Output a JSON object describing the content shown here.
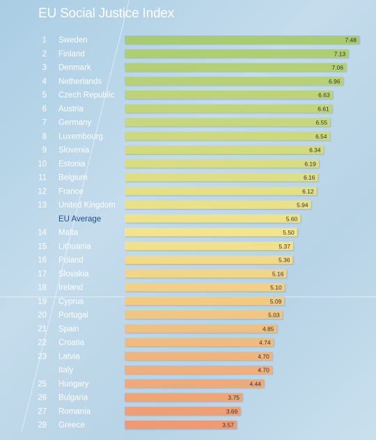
{
  "chart_data": {
    "type": "bar",
    "orientation": "horizontal",
    "title": "EU Social Justice Index",
    "xlabel": "",
    "ylabel": "",
    "grid": false,
    "xlim": [
      0,
      7.48
    ],
    "rows": [
      {
        "rank": "1",
        "label": "Sweden",
        "value": 7.48,
        "value_label": "7.48"
      },
      {
        "rank": "2",
        "label": "Finland",
        "value": 7.13,
        "value_label": "7.13"
      },
      {
        "rank": "3",
        "label": "Denmark",
        "value": 7.06,
        "value_label": "7.06"
      },
      {
        "rank": "4",
        "label": "Netherlands",
        "value": 6.96,
        "value_label": "6.96"
      },
      {
        "rank": "5",
        "label": "Czech Republic",
        "value": 6.63,
        "value_label": "6.63"
      },
      {
        "rank": "6",
        "label": "Austria",
        "value": 6.61,
        "value_label": "6.61"
      },
      {
        "rank": "7",
        "label": "Germany",
        "value": 6.55,
        "value_label": "6.55"
      },
      {
        "rank": "8",
        "label": "Luxembourg",
        "value": 6.54,
        "value_label": "6.54"
      },
      {
        "rank": "9",
        "label": "Slovenia",
        "value": 6.34,
        "value_label": "6.34"
      },
      {
        "rank": "10",
        "label": "Estonia",
        "value": 6.19,
        "value_label": "6.19"
      },
      {
        "rank": "11",
        "label": "Belgium",
        "value": 6.16,
        "value_label": "6.16"
      },
      {
        "rank": "12",
        "label": "France",
        "value": 6.12,
        "value_label": "6.12"
      },
      {
        "rank": "13",
        "label": "United Kingdom",
        "value": 5.94,
        "value_label": "5.94"
      },
      {
        "rank": "",
        "label": "EU Average",
        "value": 5.6,
        "value_label": "5.60",
        "highlight": true
      },
      {
        "rank": "14",
        "label": "Malta",
        "value": 5.5,
        "value_label": "5.50"
      },
      {
        "rank": "15",
        "label": "Lithuania",
        "value": 5.37,
        "value_label": "5.37"
      },
      {
        "rank": "16",
        "label": "Poland",
        "value": 5.36,
        "value_label": "5.36"
      },
      {
        "rank": "17",
        "label": "Slovakia",
        "value": 5.16,
        "value_label": "5.16"
      },
      {
        "rank": "18",
        "label": "Ireland",
        "value": 5.1,
        "value_label": "5.10"
      },
      {
        "rank": "19",
        "label": "Cyprus",
        "value": 5.09,
        "value_label": "5.09"
      },
      {
        "rank": "20",
        "label": "Portugal",
        "value": 5.03,
        "value_label": "5.03"
      },
      {
        "rank": "21",
        "label": "Spain",
        "value": 4.85,
        "value_label": "4.85"
      },
      {
        "rank": "22",
        "label": "Croatia",
        "value": 4.74,
        "value_label": "4.74"
      },
      {
        "rank": "23",
        "label": "Latvia",
        "value": 4.7,
        "value_label": "4.70"
      },
      {
        "rank": "",
        "label": "Italy",
        "value": 4.7,
        "value_label": "4.70"
      },
      {
        "rank": "25",
        "label": "Hungary",
        "value": 4.44,
        "value_label": "4.44"
      },
      {
        "rank": "26",
        "label": "Bulgaria",
        "value": 3.75,
        "value_label": "3.75"
      },
      {
        "rank": "27",
        "label": "Romania",
        "value": 3.69,
        "value_label": "3.69"
      },
      {
        "rank": "28",
        "label": "Greece",
        "value": 3.57,
        "value_label": "3.57"
      }
    ],
    "colors": {
      "label_text": "#ffffff",
      "highlight_text": "#1d4e8a",
      "value_text": "#333333",
      "bar_top": "#a9cc6e",
      "bar_mid": "#f3e58c",
      "bar_bottom": "#ef9a74"
    }
  }
}
